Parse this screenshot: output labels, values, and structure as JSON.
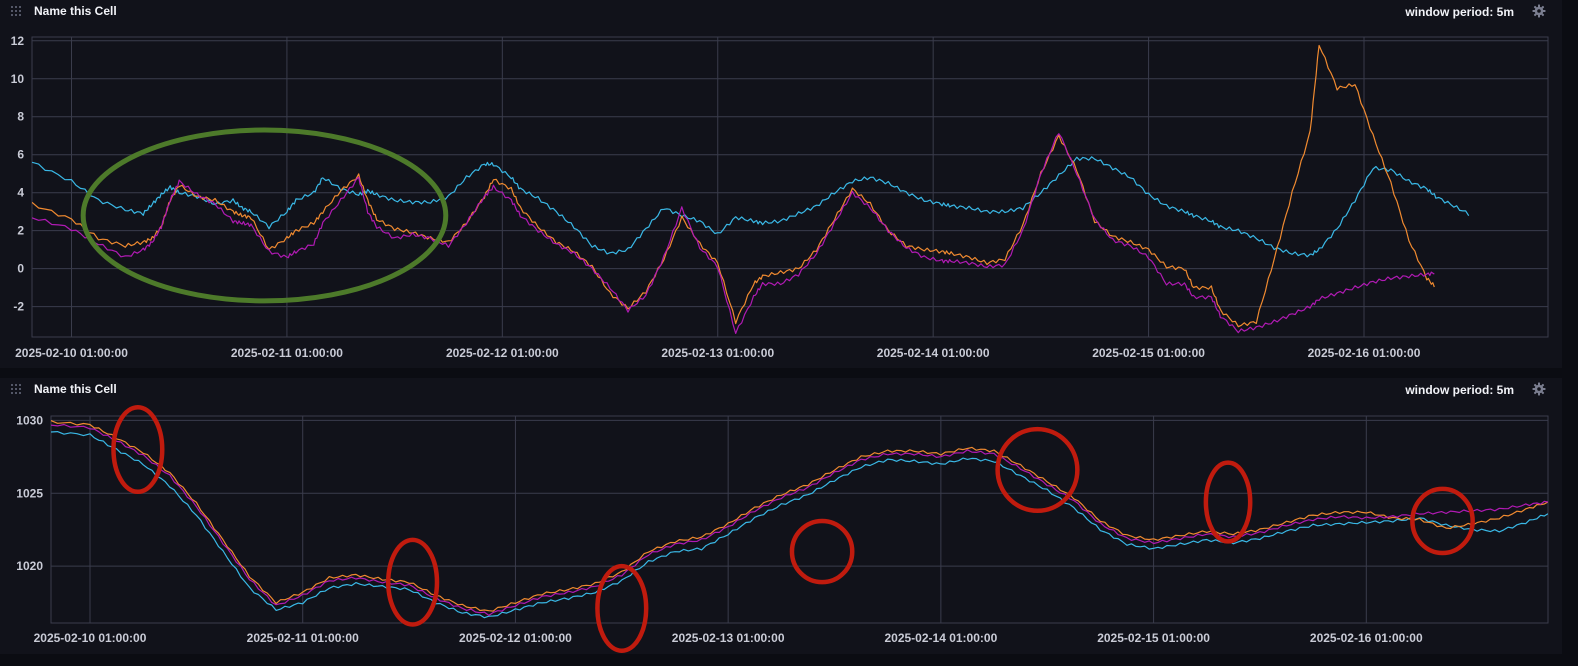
{
  "cells": [
    {
      "title": "Name this Cell",
      "window_period": "window period: 5m",
      "drag_icon": "drag-handle-icon",
      "settings_icon": "gear-icon"
    },
    {
      "title": "Name this Cell",
      "window_period": "window period: 5m",
      "drag_icon": "drag-handle-icon",
      "settings_icon": "gear-icon"
    }
  ],
  "colors": {
    "cyan": "#3ab8e6",
    "orange": "#f08a30",
    "magenta": "#b01ab3",
    "grid": "#3a3c4c",
    "green_annotation": "#4d7a2a",
    "red_annotation": "#c01b0e"
  },
  "chart_data": [
    {
      "type": "line",
      "title": "",
      "xlabel": "",
      "ylabel": "",
      "x_ticks": [
        "2025-02-10 01:00:00",
        "2025-02-11 01:00:00",
        "2025-02-12 01:00:00",
        "2025-02-13 01:00:00",
        "2025-02-14 01:00:00",
        "2025-02-15 01:00:00",
        "2025-02-16 01:00:00"
      ],
      "y_ticks": [
        12,
        10,
        8,
        6,
        4,
        2,
        0,
        -2
      ],
      "ylim": [
        -3.6,
        12.2
      ],
      "xlim_hours": [
        -4.4,
        164.5
      ],
      "grid": true,
      "legend": "none",
      "x_hours_from_first_tick": [
        -4.4,
        0,
        3,
        6,
        8,
        9,
        10,
        11,
        12,
        14,
        16,
        18,
        19,
        20,
        22,
        24,
        25,
        27,
        28,
        30,
        32,
        33,
        34,
        36,
        38,
        40,
        42,
        44,
        46,
        47,
        49,
        50,
        52,
        54,
        56,
        58,
        60,
        62,
        64,
        66,
        68,
        70,
        72,
        74,
        76,
        77,
        79,
        81,
        83,
        85,
        87,
        89,
        91,
        93,
        95,
        97,
        98,
        100,
        102,
        104,
        106,
        108,
        110,
        112,
        114,
        116,
        118,
        120,
        122,
        124,
        125,
        127,
        128,
        130,
        132,
        134,
        136,
        138,
        139,
        141,
        143,
        145,
        147,
        149,
        151,
        152,
        154,
        156,
        158,
        160,
        162,
        164.5
      ],
      "series": [
        {
          "color_key": "cyan",
          "values": [
            5.6,
            4.6,
            3.6,
            3.1,
            2.9,
            3.4,
            3.9,
            4.3,
            4.0,
            3.8,
            3.4,
            3.6,
            3.2,
            3.0,
            2.2,
            3.0,
            3.6,
            4.0,
            4.8,
            4.2,
            3.9,
            4.1,
            3.9,
            3.6,
            3.5,
            3.5,
            3.8,
            4.8,
            5.5,
            5.5,
            4.8,
            4.2,
            3.7,
            3.0,
            2.2,
            1.2,
            0.8,
            1.0,
            2.1,
            3.2,
            2.8,
            2.5,
            1.8,
            2.7,
            2.5,
            2.4,
            2.5,
            2.9,
            3.3,
            4.0,
            4.6,
            4.8,
            4.5,
            4.0,
            3.6,
            3.4,
            3.3,
            3.2,
            3.0,
            3.0,
            3.2,
            4.0,
            4.9,
            5.8,
            5.8,
            5.3,
            4.8,
            3.9,
            3.3,
            3.0,
            2.8,
            2.5,
            2.2,
            2.0,
            1.6,
            1.1,
            0.8,
            0.7,
            1.0,
            2.1,
            3.6,
            5.3,
            5.2,
            4.6,
            4.2,
            3.8,
            3.3,
            2.8
          ]
        },
        {
          "color_key": "orange",
          "values": [
            3.4,
            2.6,
            1.6,
            1.2,
            1.4,
            1.6,
            2.2,
            3.6,
            4.4,
            3.8,
            3.6,
            3.0,
            2.8,
            2.7,
            1.0,
            1.6,
            2.0,
            2.4,
            3.0,
            4.1,
            4.9,
            3.6,
            2.6,
            2.1,
            1.9,
            1.6,
            1.4,
            2.4,
            3.8,
            4.7,
            4.2,
            3.2,
            2.2,
            1.4,
            0.9,
            0.1,
            -1.3,
            -2.1,
            -1.2,
            0.5,
            2.7,
            1.3,
            0.3,
            -2.8,
            -0.8,
            -0.4,
            -0.2,
            0.0,
            1.0,
            2.6,
            4.2,
            3.4,
            2.0,
            1.2,
            1.0,
            0.9,
            0.8,
            0.6,
            0.3,
            0.5,
            2.3,
            5.0,
            7.0,
            5.2,
            2.5,
            1.7,
            1.4,
            1.0,
            0.1,
            0.0,
            -1.0,
            -1.0,
            -2.2,
            -3.0,
            -2.8,
            0.5,
            4.0,
            7.2,
            11.8,
            9.5,
            9.7,
            7.0,
            4.5,
            1.5,
            -0.5,
            -1.0
          ]
        },
        {
          "color_key": "magenta",
          "values": [
            2.7,
            2.1,
            1.3,
            0.6,
            1.0,
            1.4,
            2.2,
            3.6,
            4.6,
            3.9,
            3.4,
            2.5,
            2.4,
            2.3,
            0.9,
            0.6,
            0.9,
            1.3,
            2.4,
            3.6,
            4.8,
            3.0,
            2.2,
            1.6,
            1.8,
            1.6,
            1.2,
            2.4,
            3.8,
            4.3,
            3.6,
            2.8,
            2.0,
            1.3,
            0.8,
            0.0,
            -1.0,
            -2.2,
            -1.4,
            0.6,
            3.2,
            1.1,
            0.1,
            -3.4,
            -1.5,
            -0.8,
            -0.8,
            -0.3,
            0.8,
            2.4,
            4.0,
            3.2,
            2.0,
            1.1,
            0.6,
            0.4,
            0.4,
            0.3,
            0.1,
            0.2,
            2.0,
            5.0,
            7.2,
            5.0,
            2.6,
            1.5,
            1.2,
            0.6,
            -0.8,
            -0.8,
            -1.5,
            -1.5,
            -2.5,
            -3.3,
            -3.1,
            -2.8,
            -2.4,
            -2.0,
            -1.6,
            -1.3,
            -1.0,
            -0.7,
            -0.5,
            -0.4,
            -0.3,
            -0.2
          ]
        }
      ],
      "annotations": [
        {
          "shape": "ellipse",
          "color_key": "green_annotation",
          "x_center_hours": 21.5,
          "y_center": 2.8,
          "rx_hours": 20.2,
          "ry": 4.5
        }
      ]
    },
    {
      "type": "line",
      "title": "",
      "xlabel": "",
      "ylabel": "",
      "x_ticks": [
        "2025-02-10 01:00:00",
        "2025-02-11 01:00:00",
        "2025-02-12 01:00:00",
        "2025-02-13 01:00:00",
        "2025-02-14 01:00:00",
        "2025-02-15 01:00:00",
        "2025-02-16 01:00:00"
      ],
      "y_ticks": [
        1030,
        1025,
        1020
      ],
      "ylim": [
        1016.1,
        1030.3
      ],
      "xlim_hours": [
        -4.4,
        164.5
      ],
      "grid": true,
      "legend": "none",
      "x_hours_from_first_tick": [
        -4.4,
        0,
        3,
        6,
        9,
        12,
        15,
        18,
        21,
        24,
        27,
        30,
        33,
        36,
        39,
        42,
        45,
        48,
        51,
        54,
        57,
        60,
        63,
        66,
        69,
        72,
        75,
        78,
        81,
        84,
        87,
        90,
        93,
        96,
        99,
        102,
        105,
        108,
        111,
        114,
        117,
        120,
        123,
        126,
        129,
        132,
        135,
        138,
        141,
        144,
        147,
        150,
        153,
        156,
        159,
        162,
        164.5
      ],
      "series": [
        {
          "color_key": "cyan",
          "values": [
            1029.2,
            1029.0,
            1028.0,
            1027.0,
            1025.5,
            1023.5,
            1021.0,
            1018.5,
            1017.0,
            1017.5,
            1018.5,
            1018.8,
            1018.6,
            1018.4,
            1017.5,
            1016.8,
            1016.5,
            1017.0,
            1017.5,
            1017.8,
            1018.2,
            1019.0,
            1020.3,
            1021.0,
            1021.2,
            1022.2,
            1023.3,
            1024.2,
            1024.9,
            1025.9,
            1026.8,
            1027.3,
            1027.2,
            1027.0,
            1027.4,
            1027.2,
            1026.2,
            1025.2,
            1024.0,
            1022.5,
            1021.5,
            1021.2,
            1021.5,
            1021.8,
            1021.6,
            1021.9,
            1022.4,
            1022.8,
            1022.9,
            1023.0,
            1023.1,
            1023.3,
            1022.8,
            1022.5,
            1022.4,
            1023.0,
            1023.6
          ]
        },
        {
          "color_key": "orange",
          "values": [
            1029.9,
            1029.7,
            1028.8,
            1027.8,
            1026.4,
            1024.3,
            1021.8,
            1019.3,
            1017.5,
            1018.2,
            1019.2,
            1019.4,
            1019.1,
            1018.9,
            1018.0,
            1017.3,
            1016.9,
            1017.5,
            1018.1,
            1018.4,
            1018.8,
            1019.6,
            1021.0,
            1021.7,
            1022.0,
            1022.9,
            1024.0,
            1024.9,
            1025.6,
            1026.6,
            1027.5,
            1027.9,
            1027.9,
            1027.7,
            1028.1,
            1027.9,
            1026.9,
            1025.8,
            1024.7,
            1023.1,
            1022.1,
            1021.8,
            1022.1,
            1022.4,
            1022.2,
            1022.5,
            1023.0,
            1023.5,
            1023.7,
            1023.7,
            1023.3,
            1023.2,
            1022.6,
            1022.9,
            1023.3,
            1023.9,
            1024.4
          ]
        },
        {
          "color_key": "magenta",
          "values": [
            1029.7,
            1029.5,
            1028.6,
            1027.6,
            1026.2,
            1024.1,
            1021.6,
            1019.1,
            1017.3,
            1018.0,
            1019.0,
            1019.2,
            1018.9,
            1018.7,
            1017.8,
            1017.1,
            1016.7,
            1017.3,
            1017.9,
            1018.2,
            1018.6,
            1019.4,
            1020.8,
            1021.5,
            1021.8,
            1022.7,
            1023.8,
            1024.7,
            1025.4,
            1026.4,
            1027.3,
            1027.7,
            1027.7,
            1027.5,
            1027.9,
            1027.7,
            1026.7,
            1025.6,
            1024.5,
            1022.9,
            1021.9,
            1021.6,
            1021.9,
            1022.2,
            1022.0,
            1022.3,
            1022.8,
            1023.2,
            1023.4,
            1023.3,
            1023.4,
            1023.6,
            1023.7,
            1023.8,
            1023.9,
            1024.2,
            1024.4
          ]
        }
      ],
      "annotations": [
        {
          "shape": "ellipse",
          "color_key": "red_annotation",
          "x_center_hours": 5.4,
          "y_center": 1028.0,
          "rx_hours": 2.75,
          "ry": 2.9
        },
        {
          "shape": "ellipse",
          "color_key": "red_annotation",
          "x_center_hours": 36.4,
          "y_center": 1018.9,
          "rx_hours": 2.75,
          "ry": 2.9
        },
        {
          "shape": "ellipse",
          "color_key": "red_annotation",
          "x_center_hours": 60.0,
          "y_center": 1017.1,
          "rx_hours": 2.75,
          "ry": 2.9
        },
        {
          "shape": "ellipse",
          "color_key": "red_annotation",
          "x_center_hours": 82.6,
          "y_center": 1021.0,
          "rx_hours": 3.4,
          "ry": 2.1
        },
        {
          "shape": "ellipse",
          "color_key": "red_annotation",
          "x_center_hours": 106.9,
          "y_center": 1026.6,
          "rx_hours": 4.5,
          "ry": 2.8
        },
        {
          "shape": "ellipse",
          "color_key": "red_annotation",
          "x_center_hours": 128.4,
          "y_center": 1024.4,
          "rx_hours": 2.5,
          "ry": 2.7
        },
        {
          "shape": "ellipse",
          "color_key": "red_annotation",
          "x_center_hours": 152.6,
          "y_center": 1023.1,
          "rx_hours": 3.4,
          "ry": 2.2
        }
      ]
    }
  ]
}
